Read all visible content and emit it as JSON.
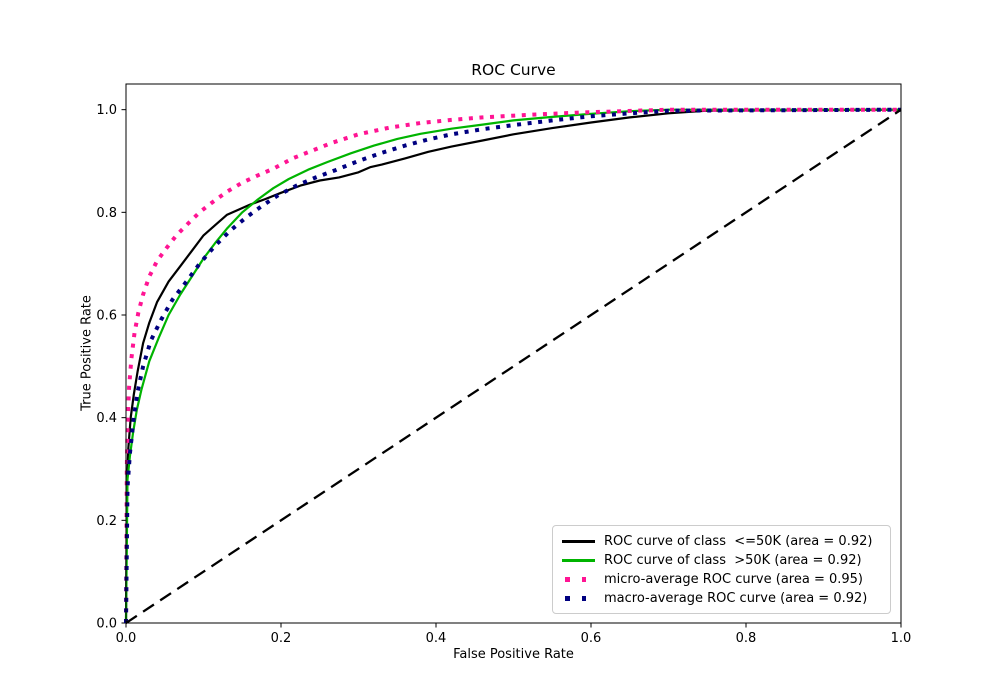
{
  "chart_data": {
    "type": "line",
    "title": "ROC Curve",
    "xlabel": "False Positive Rate",
    "ylabel": "True Positive Rate",
    "xlim": [
      0.0,
      1.0
    ],
    "ylim": [
      0.0,
      1.05
    ],
    "xticks": [
      0.0,
      0.2,
      0.4,
      0.6,
      0.8,
      1.0
    ],
    "xtick_labels": [
      "0.0",
      "0.2",
      "0.4",
      "0.6",
      "0.8",
      "1.0"
    ],
    "yticks": [
      0.0,
      0.2,
      0.4,
      0.6,
      0.8,
      1.0
    ],
    "ytick_labels": [
      "0.0",
      "0.2",
      "0.4",
      "0.6",
      "0.8",
      "1.0"
    ],
    "grid": false,
    "legend_position": "lower right",
    "series": [
      {
        "id": "roc-class-le50k",
        "label": "ROC curve of class  <=50K (area = 0.92)",
        "area": 0.92,
        "color": "#000000",
        "linestyle": "solid",
        "lw": 2.2,
        "fpr": [
          0,
          0.001,
          0.003,
          0.006,
          0.01,
          0.015,
          0.022,
          0.03,
          0.04,
          0.055,
          0.07,
          0.085,
          0.1,
          0.115,
          0.13,
          0.145,
          0.16,
          0.18,
          0.2,
          0.225,
          0.25,
          0.275,
          0.3,
          0.315,
          0.33,
          0.36,
          0.39,
          0.42,
          0.46,
          0.5,
          0.55,
          0.6,
          0.65,
          0.7,
          0.75,
          1.0
        ],
        "tpr": [
          0,
          0.25,
          0.34,
          0.4,
          0.445,
          0.49,
          0.545,
          0.585,
          0.625,
          0.665,
          0.695,
          0.725,
          0.755,
          0.775,
          0.795,
          0.805,
          0.815,
          0.826,
          0.838,
          0.852,
          0.862,
          0.868,
          0.878,
          0.888,
          0.893,
          0.905,
          0.918,
          0.928,
          0.94,
          0.952,
          0.964,
          0.975,
          0.985,
          0.993,
          0.998,
          1.0
        ]
      },
      {
        "id": "roc-class-gt50k",
        "label": "ROC curve of class  >50K (area = 0.92)",
        "area": 0.92,
        "color": "#00b400",
        "linestyle": "solid",
        "lw": 2.2,
        "fpr": [
          0,
          0.002,
          0.005,
          0.009,
          0.014,
          0.02,
          0.03,
          0.042,
          0.055,
          0.07,
          0.085,
          0.1,
          0.115,
          0.13,
          0.15,
          0.17,
          0.19,
          0.21,
          0.235,
          0.26,
          0.29,
          0.32,
          0.35,
          0.38,
          0.42,
          0.46,
          0.5,
          0.55,
          0.6,
          0.65,
          0.7,
          1.0
        ],
        "tpr": [
          0,
          0.28,
          0.325,
          0.37,
          0.415,
          0.455,
          0.51,
          0.555,
          0.6,
          0.64,
          0.675,
          0.71,
          0.74,
          0.768,
          0.8,
          0.825,
          0.847,
          0.865,
          0.883,
          0.898,
          0.915,
          0.93,
          0.943,
          0.953,
          0.963,
          0.971,
          0.979,
          0.986,
          0.992,
          0.997,
          1.0,
          1.0
        ]
      },
      {
        "id": "micro-average",
        "label": "micro-average ROC curve (area = 0.95)",
        "area": 0.95,
        "color": "#ff1493",
        "linestyle": "dotted",
        "lw": 4,
        "fpr": [
          0,
          0.001,
          0.002,
          0.004,
          0.007,
          0.011,
          0.016,
          0.022,
          0.03,
          0.04,
          0.052,
          0.065,
          0.08,
          0.095,
          0.11,
          0.13,
          0.15,
          0.17,
          0.19,
          0.215,
          0.24,
          0.265,
          0.3,
          0.34,
          0.38,
          0.42,
          0.46,
          0.52,
          0.58,
          0.64,
          0.7,
          1.0
        ],
        "tpr": [
          0,
          0.3,
          0.38,
          0.46,
          0.515,
          0.565,
          0.605,
          0.64,
          0.675,
          0.705,
          0.73,
          0.755,
          0.778,
          0.8,
          0.818,
          0.84,
          0.858,
          0.872,
          0.885,
          0.905,
          0.92,
          0.935,
          0.952,
          0.965,
          0.974,
          0.98,
          0.985,
          0.99,
          0.994,
          0.997,
          1.0,
          1.0
        ]
      },
      {
        "id": "macro-average",
        "label": "macro-average ROC curve (area = 0.92)",
        "area": 0.92,
        "color": "#000080",
        "linestyle": "dotted",
        "lw": 4,
        "fpr": [
          0,
          0.002,
          0.005,
          0.01,
          0.015,
          0.022,
          0.032,
          0.045,
          0.06,
          0.078,
          0.095,
          0.115,
          0.135,
          0.155,
          0.175,
          0.195,
          0.22,
          0.245,
          0.27,
          0.3,
          0.33,
          0.36,
          0.39,
          0.42,
          0.46,
          0.5,
          0.55,
          0.6,
          0.65,
          0.7,
          1.0
        ],
        "tpr": [
          0,
          0.265,
          0.33,
          0.4,
          0.45,
          0.5,
          0.55,
          0.59,
          0.63,
          0.665,
          0.7,
          0.735,
          0.765,
          0.79,
          0.812,
          0.832,
          0.852,
          0.868,
          0.882,
          0.9,
          0.916,
          0.93,
          0.942,
          0.952,
          0.962,
          0.97,
          0.979,
          0.987,
          0.993,
          0.998,
          1.0
        ]
      }
    ],
    "chance_line": {
      "id": "chance-diagonal",
      "color": "#000000",
      "linestyle": "dashed",
      "lw": 2.3,
      "fpr": [
        0,
        1
      ],
      "tpr": [
        0,
        1
      ]
    }
  }
}
